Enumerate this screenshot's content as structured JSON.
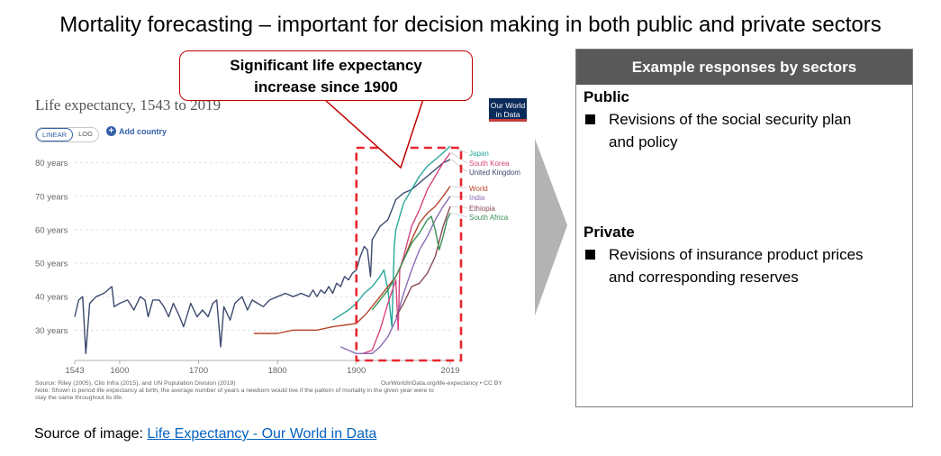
{
  "slide": {
    "title": "Mortality forecasting – important for decision making in both public and private sectors",
    "callout": {
      "line1": "Significant life expectancy",
      "line2": "increase since 1900"
    },
    "source_label": "Source of image: ",
    "source_link": "Life Expectancy - Our World in Data"
  },
  "panel": {
    "header": "Example responses by sectors",
    "sections": [
      {
        "title": "Public",
        "bullets": [
          {
            "line1": "Revisions of the social security plan",
            "line2": "and policy"
          }
        ]
      },
      {
        "title": "Private",
        "bullets": [
          {
            "line1": "Revisions of insurance product prices",
            "line2": "and corresponding reserves"
          }
        ]
      }
    ]
  },
  "chart_ui": {
    "logo_line1": "Our World",
    "logo_line2": "in Data",
    "toggle_linear": "LINEAR",
    "toggle_log": "LOG",
    "add_country": "Add country",
    "source_note": "Source: Riley (2005), Clio Infra (2015), and UN Population Division (2019)",
    "note1": "Note: Shown is period life expectancy at birth, the average number of years a newborn would live if the pattern of mortality in the given year were to",
    "note2": "stay the same throughout its life.",
    "url": "OurWorldInData.org/life-expectancy • CC BY"
  },
  "colors": {
    "highlight_box": "#e8262d",
    "callout_border": "#c00000",
    "panel_header": "#595959",
    "link": "#0563c1"
  },
  "chart_data": {
    "type": "line",
    "title": "Life expectancy, 1543 to 2019",
    "xlim": [
      1543,
      2019
    ],
    "ylim": [
      22,
      88
    ],
    "x_ticks": [
      {
        "value": 1543,
        "label": "1543"
      },
      {
        "value": 1600,
        "label": "1600"
      },
      {
        "value": 1700,
        "label": "1700"
      },
      {
        "value": 1800,
        "label": "1800"
      },
      {
        "value": 1900,
        "label": "1900"
      },
      {
        "value": 2019,
        "label": "2019"
      }
    ],
    "y_ticks": [
      {
        "value": 30,
        "label": "30 years"
      },
      {
        "value": 40,
        "label": "40 years"
      },
      {
        "value": 50,
        "label": "50 years"
      },
      {
        "value": 60,
        "label": "60 years"
      },
      {
        "value": 70,
        "label": "70 years"
      },
      {
        "value": 80,
        "label": "80 years"
      }
    ],
    "grid": true,
    "highlight_range": [
      1900,
      2019
    ],
    "series": [
      {
        "name": "United Kingdom",
        "color": "#3c4a6e",
        "points": [
          [
            1543,
            34
          ],
          [
            1548,
            39
          ],
          [
            1553,
            40
          ],
          [
            1557,
            23
          ],
          [
            1562,
            38
          ],
          [
            1570,
            40
          ],
          [
            1580,
            41
          ],
          [
            1590,
            43
          ],
          [
            1593,
            37
          ],
          [
            1600,
            38
          ],
          [
            1610,
            39
          ],
          [
            1618,
            36
          ],
          [
            1626,
            40
          ],
          [
            1632,
            39
          ],
          [
            1636,
            34
          ],
          [
            1642,
            39
          ],
          [
            1650,
            39
          ],
          [
            1656,
            37
          ],
          [
            1662,
            34
          ],
          [
            1668,
            38
          ],
          [
            1676,
            34
          ],
          [
            1681,
            31
          ],
          [
            1690,
            38
          ],
          [
            1698,
            34
          ],
          [
            1705,
            36
          ],
          [
            1712,
            34
          ],
          [
            1718,
            38
          ],
          [
            1723,
            39
          ],
          [
            1728,
            25
          ],
          [
            1732,
            37
          ],
          [
            1740,
            33
          ],
          [
            1746,
            38
          ],
          [
            1755,
            40
          ],
          [
            1762,
            36
          ],
          [
            1768,
            39
          ],
          [
            1775,
            38
          ],
          [
            1782,
            37
          ],
          [
            1790,
            39
          ],
          [
            1800,
            40
          ],
          [
            1810,
            41
          ],
          [
            1820,
            40
          ],
          [
            1830,
            41
          ],
          [
            1840,
            40
          ],
          [
            1845,
            42
          ],
          [
            1850,
            40
          ],
          [
            1855,
            42
          ],
          [
            1860,
            41
          ],
          [
            1865,
            43
          ],
          [
            1870,
            41
          ],
          [
            1875,
            44
          ],
          [
            1880,
            43
          ],
          [
            1885,
            46
          ],
          [
            1890,
            45
          ],
          [
            1895,
            47
          ],
          [
            1900,
            48
          ],
          [
            1905,
            52
          ],
          [
            1910,
            55
          ],
          [
            1914,
            54
          ],
          [
            1918,
            46
          ],
          [
            1920,
            57
          ],
          [
            1925,
            59
          ],
          [
            1930,
            61
          ],
          [
            1935,
            62
          ],
          [
            1940,
            63
          ],
          [
            1945,
            66
          ],
          [
            1950,
            69
          ],
          [
            1960,
            71
          ],
          [
            1970,
            72
          ],
          [
            1980,
            74
          ],
          [
            1990,
            76
          ],
          [
            2000,
            78
          ],
          [
            2010,
            80
          ],
          [
            2019,
            81
          ]
        ]
      },
      {
        "name": "Japan",
        "color": "#26a69a",
        "points": [
          [
            1870,
            33
          ],
          [
            1890,
            36
          ],
          [
            1900,
            38
          ],
          [
            1910,
            41
          ],
          [
            1920,
            43
          ],
          [
            1930,
            46
          ],
          [
            1935,
            48
          ],
          [
            1940,
            42
          ],
          [
            1945,
            31
          ],
          [
            1948,
            55
          ],
          [
            1950,
            60
          ],
          [
            1955,
            64
          ],
          [
            1960,
            68
          ],
          [
            1970,
            72
          ],
          [
            1980,
            76
          ],
          [
            1990,
            79
          ],
          [
            2000,
            81
          ],
          [
            2010,
            83
          ],
          [
            2019,
            85
          ]
        ]
      },
      {
        "name": "South Korea",
        "color": "#d6457f",
        "points": [
          [
            1908,
            23
          ],
          [
            1920,
            24
          ],
          [
            1930,
            30
          ],
          [
            1940,
            38
          ],
          [
            1950,
            45
          ],
          [
            1953,
            30
          ],
          [
            1955,
            48
          ],
          [
            1960,
            52
          ],
          [
            1970,
            61
          ],
          [
            1980,
            66
          ],
          [
            1990,
            72
          ],
          [
            2000,
            76
          ],
          [
            2010,
            80
          ],
          [
            2019,
            83
          ]
        ]
      },
      {
        "name": "World",
        "color": "#b5452a",
        "points": [
          [
            1770,
            29
          ],
          [
            1800,
            29
          ],
          [
            1820,
            30
          ],
          [
            1850,
            30
          ],
          [
            1870,
            31
          ],
          [
            1900,
            32
          ],
          [
            1913,
            35
          ],
          [
            1930,
            40
          ],
          [
            1950,
            46
          ],
          [
            1960,
            51
          ],
          [
            1970,
            57
          ],
          [
            1980,
            62
          ],
          [
            1990,
            65
          ],
          [
            2000,
            67
          ],
          [
            2010,
            70
          ],
          [
            2019,
            73
          ]
        ]
      },
      {
        "name": "India",
        "color": "#8d6bb5",
        "points": [
          [
            1880,
            25
          ],
          [
            1890,
            24
          ],
          [
            1900,
            23
          ],
          [
            1910,
            23
          ],
          [
            1920,
            23
          ],
          [
            1930,
            25
          ],
          [
            1940,
            28
          ],
          [
            1950,
            33
          ],
          [
            1960,
            41
          ],
          [
            1970,
            48
          ],
          [
            1980,
            54
          ],
          [
            1990,
            58
          ],
          [
            2000,
            63
          ],
          [
            2010,
            67
          ],
          [
            2019,
            70
          ]
        ]
      },
      {
        "name": "Ethiopia",
        "color": "#8a4a5a",
        "points": [
          [
            1950,
            34
          ],
          [
            1960,
            38
          ],
          [
            1970,
            43
          ],
          [
            1980,
            44
          ],
          [
            1990,
            47
          ],
          [
            2000,
            52
          ],
          [
            2010,
            61
          ],
          [
            2019,
            67
          ]
        ]
      },
      {
        "name": "South Africa",
        "color": "#3a8f55",
        "points": [
          [
            1920,
            36
          ],
          [
            1930,
            39
          ],
          [
            1940,
            42
          ],
          [
            1950,
            46
          ],
          [
            1960,
            51
          ],
          [
            1970,
            56
          ],
          [
            1980,
            59
          ],
          [
            1990,
            63
          ],
          [
            1995,
            64
          ],
          [
            2000,
            60
          ],
          [
            2005,
            54
          ],
          [
            2010,
            58
          ],
          [
            2015,
            63
          ],
          [
            2019,
            65
          ]
        ]
      }
    ]
  }
}
